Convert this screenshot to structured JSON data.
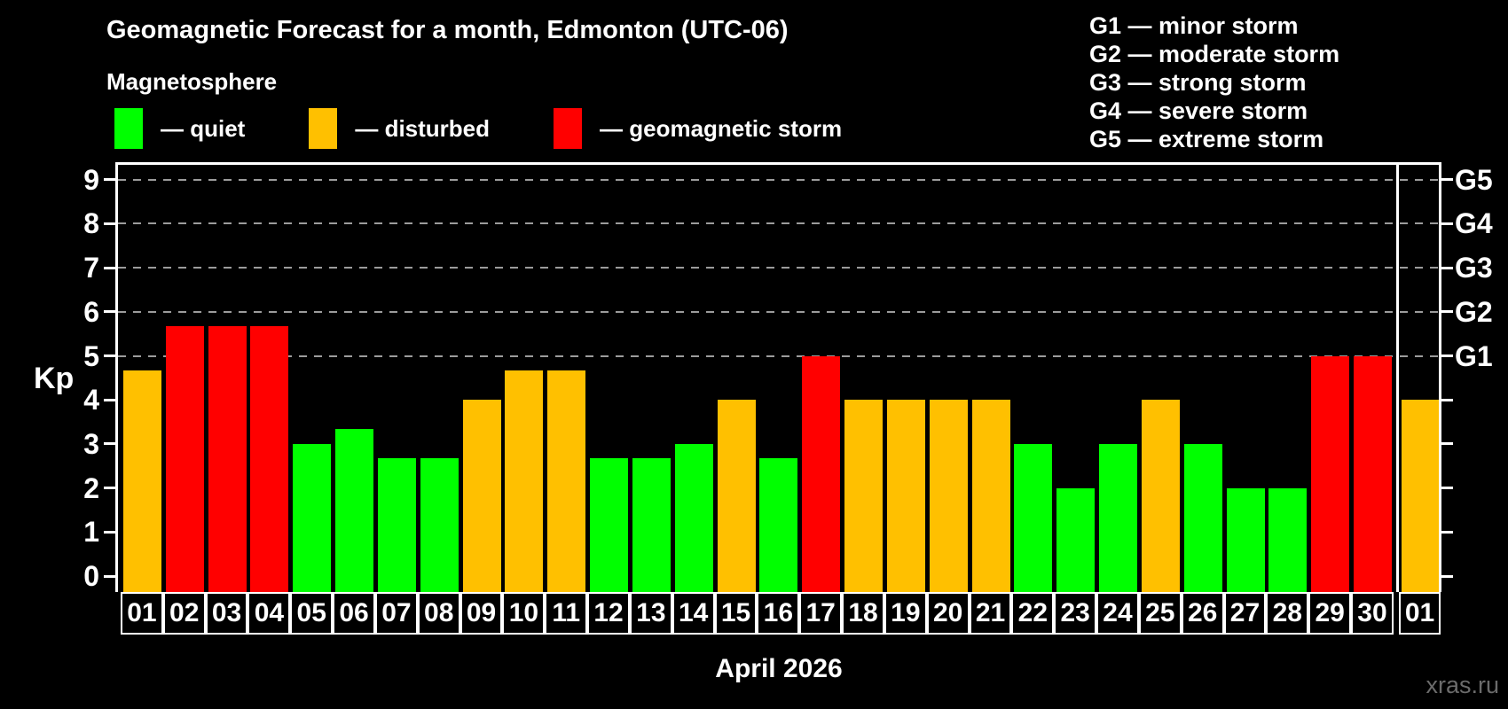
{
  "header": {
    "title": "Geomagnetic Forecast for a month, Edmonton (UTC-06)",
    "subtitle": "Magnetosphere"
  },
  "legend": {
    "items": [
      {
        "name": "quiet",
        "label": "— quiet",
        "color": "#00ff00"
      },
      {
        "name": "disturbed",
        "label": "— disturbed",
        "color": "#ffc000"
      },
      {
        "name": "storm",
        "label": "— geomagnetic storm",
        "color": "#ff0000"
      }
    ]
  },
  "storm_scale_legend": [
    "G1 — minor storm",
    "G2 — moderate storm",
    "G3 — strong storm",
    "G4 — severe storm",
    "G5 — extreme storm"
  ],
  "chart_data": {
    "type": "bar",
    "title": "Geomagnetic Forecast for a month, Edmonton (UTC-06)",
    "xlabel": "April 2026",
    "ylabel": "Kp",
    "ylim": [
      0,
      9
    ],
    "yticks": [
      0,
      1,
      2,
      3,
      4,
      5,
      6,
      7,
      8,
      9
    ],
    "gridlines_at_kp": [
      5,
      6,
      7,
      8,
      9
    ],
    "grid_style": "dashed",
    "legend_position": "top",
    "right_axis": [
      {
        "kp": 5,
        "label": "G1"
      },
      {
        "kp": 6,
        "label": "G2"
      },
      {
        "kp": 7,
        "label": "G3"
      },
      {
        "kp": 8,
        "label": "G4"
      },
      {
        "kp": 9,
        "label": "G5"
      }
    ],
    "categories": [
      "01",
      "02",
      "03",
      "04",
      "05",
      "06",
      "07",
      "08",
      "09",
      "10",
      "11",
      "12",
      "13",
      "14",
      "15",
      "16",
      "17",
      "18",
      "19",
      "20",
      "21",
      "22",
      "23",
      "24",
      "25",
      "26",
      "27",
      "28",
      "29",
      "30",
      "01"
    ],
    "values": [
      4.67,
      5.67,
      5.67,
      5.67,
      3.0,
      3.33,
      2.67,
      2.67,
      4.0,
      4.67,
      4.67,
      2.67,
      2.67,
      3.0,
      4.0,
      2.67,
      5.0,
      4.0,
      4.0,
      4.0,
      4.0,
      3.0,
      2.0,
      3.0,
      4.0,
      3.0,
      2.0,
      2.0,
      5.0,
      5.0,
      4.0
    ],
    "levels": [
      "disturbed",
      "storm",
      "storm",
      "storm",
      "quiet",
      "quiet",
      "quiet",
      "quiet",
      "disturbed",
      "disturbed",
      "disturbed",
      "quiet",
      "quiet",
      "quiet",
      "disturbed",
      "quiet",
      "storm",
      "disturbed",
      "disturbed",
      "disturbed",
      "disturbed",
      "quiet",
      "quiet",
      "quiet",
      "disturbed",
      "quiet",
      "quiet",
      "quiet",
      "storm",
      "storm",
      "disturbed"
    ],
    "level_colors": {
      "quiet": "#00ff00",
      "disturbed": "#ffc000",
      "storm": "#ff0000"
    },
    "month_separator_before_index": 30
  },
  "watermark": "xras.ru"
}
